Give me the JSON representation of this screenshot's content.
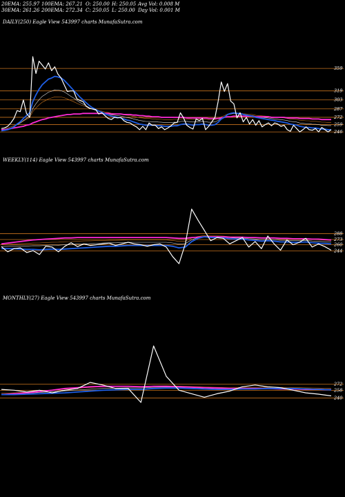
{
  "header": {
    "ema20": "20EMA: 255.97",
    "ema100": "100EMA: 267.21",
    "open": "O: 250.00",
    "high": "H: 250.05",
    "avg_vol": "Avg Vol: 0.008 M",
    "ema30": "30EMA: 261.26",
    "ema200": "200EMA: 272.34",
    "close": "C: 250.05",
    "low": "L: 250.00",
    "day_vol": "Day Vol: 0.001 M"
  },
  "colors": {
    "price": "#ffffff",
    "ema_fast": "#1f5fe6",
    "ema_mid": "#ff2bd6",
    "ema_orange": "#c8731e",
    "ema_white": "#dddddd",
    "level": "#c8731e",
    "background": "#000000"
  },
  "chart_data": [
    {
      "type": "line",
      "title": "DAILY(250) Eagle  View  543997 charts MunafaSutra.com",
      "levels": [
        359,
        319,
        303,
        287,
        272,
        259,
        246
      ],
      "series": [
        {
          "key": "price",
          "values": [
            252,
            253,
            256,
            262,
            270,
            284,
            282,
            303,
            279,
            272,
            380,
            350,
            372,
            365,
            358,
            369,
            355,
            362,
            349,
            342,
            330,
            318,
            319,
            319,
            305,
            302,
            300,
            292,
            288,
            287,
            286,
            278,
            280,
            275,
            270,
            268,
            272,
            271,
            272,
            266,
            263,
            262,
            258,
            255,
            250,
            256,
            250,
            262,
            258,
            258,
            252,
            255,
            250,
            253,
            257,
            262,
            263,
            280,
            271,
            258,
            254,
            251,
            269,
            266,
            270,
            250,
            256,
            264,
            272,
            300,
            335,
            318,
            332,
            301,
            296,
            271,
            280,
            264,
            272,
            260,
            268,
            258,
            266,
            255,
            259,
            262,
            257,
            262,
            260,
            256,
            258,
            250,
            247,
            258,
            252,
            246,
            250,
            255,
            250,
            249,
            252,
            246,
            254,
            250,
            246,
            250
          ]
        },
        {
          "key": "ema_fast",
          "values": [
            248,
            249,
            250,
            252,
            255,
            260,
            264,
            270,
            275,
            280,
            300,
            312,
            322,
            330,
            335,
            340,
            342,
            345,
            344,
            342,
            338,
            332,
            326,
            320,
            314,
            308,
            303,
            298,
            293,
            289,
            286,
            283,
            281,
            278,
            276,
            274,
            273,
            272,
            271,
            269,
            267,
            266,
            264,
            262,
            260,
            259,
            258,
            258,
            258,
            258,
            257,
            257,
            256,
            256,
            256,
            257,
            257,
            259,
            260,
            260,
            259,
            258,
            259,
            259,
            260,
            259,
            258,
            258,
            259,
            263,
            269,
            272,
            277,
            279,
            280,
            279,
            279,
            277,
            276,
            275,
            274,
            272,
            271,
            270,
            269,
            268,
            267,
            266,
            265,
            264,
            263,
            262,
            260,
            259,
            258,
            256,
            255,
            254,
            254,
            253,
            253,
            252,
            251,
            251,
            250,
            250
          ]
        },
        {
          "key": "ema_mid",
          "values": [
            250,
            250,
            251,
            252,
            253,
            254,
            255,
            256,
            258,
            259,
            262,
            264,
            266,
            268,
            269,
            271,
            272,
            273,
            274,
            275,
            276,
            277,
            277,
            278,
            278,
            278,
            279,
            279,
            279,
            279,
            279,
            279,
            279,
            279,
            279,
            278,
            278,
            278,
            278,
            277,
            277,
            277,
            276,
            276,
            275,
            275,
            274,
            274,
            273,
            273,
            273,
            272,
            272,
            272,
            272,
            272,
            272,
            272,
            272,
            271,
            271,
            271,
            271,
            271,
            271,
            271,
            270,
            270,
            270,
            270,
            271,
            272,
            273,
            273,
            274,
            274,
            274,
            274,
            274,
            274,
            274,
            273,
            273,
            273,
            273,
            273,
            272,
            272,
            272,
            272,
            272,
            271,
            271,
            271,
            271,
            270,
            270,
            270,
            270,
            269,
            269,
            269,
            268,
            268,
            268,
            268
          ]
        }
      ]
    },
    {
      "type": "line",
      "title": "WEEKLY(114) Eagle  View  543997 charts MunafaSutra.com",
      "levels": [
        288,
        273,
        260,
        244
      ],
      "series": [
        {
          "key": "price",
          "values": [
            255,
            242,
            250,
            252,
            240,
            245,
            235,
            256,
            254,
            242,
            256,
            265,
            255,
            262,
            258,
            260,
            262,
            264,
            258,
            262,
            266,
            262,
            260,
            256,
            260,
            262,
            254,
            230,
            212,
            262,
            350,
            322,
            296,
            270,
            278,
            276,
            262,
            270,
            278,
            254,
            268,
            250,
            282,
            262,
            246,
            272,
            260,
            266,
            276,
            254,
            262,
            255,
            246
          ]
        },
        {
          "key": "ema_fast",
          "values": [
            250,
            250,
            250,
            249,
            248,
            248,
            247,
            248,
            249,
            248,
            249,
            250,
            251,
            252,
            253,
            254,
            255,
            256,
            256,
            257,
            258,
            258,
            258,
            258,
            258,
            258,
            258,
            256,
            252,
            254,
            268,
            276,
            280,
            278,
            278,
            277,
            275,
            274,
            274,
            272,
            271,
            269,
            270,
            269,
            267,
            267,
            266,
            266,
            267,
            265,
            264,
            263,
            262
          ]
        },
        {
          "key": "ema_mid",
          "values": [
            262,
            264,
            266,
            268,
            270,
            272,
            273,
            274,
            275,
            276,
            277,
            277,
            278,
            278,
            278,
            278,
            278,
            278,
            278,
            278,
            278,
            278,
            278,
            278,
            278,
            278,
            278,
            277,
            276,
            276,
            278,
            279,
            280,
            280,
            280,
            280,
            279,
            279,
            279,
            278,
            278,
            277,
            277,
            277,
            276,
            276,
            275,
            275,
            275,
            274,
            274,
            273,
            272
          ]
        }
      ]
    },
    {
      "type": "line",
      "title": "MONTHLY(27) Eagle  View  543997 charts MunafaSutra.com",
      "levels": [
        272,
        258,
        240
      ],
      "series": [
        {
          "key": "price",
          "values": [
            260,
            258,
            254,
            258,
            252,
            258,
            262,
            276,
            270,
            262,
            262,
            230,
            360,
            290,
            258,
            250,
            242,
            250,
            256,
            266,
            270,
            266,
            264,
            258,
            252,
            249,
            245
          ]
        },
        {
          "key": "ema_fast",
          "values": [
            248,
            248,
            249,
            250,
            251,
            252,
            254,
            256,
            258,
            259,
            260,
            260,
            262,
            263,
            263,
            262,
            261,
            260,
            260,
            261,
            261,
            262,
            262,
            262,
            261,
            260,
            259
          ]
        },
        {
          "key": "ema_mid",
          "values": [
            248,
            250,
            252,
            255,
            258,
            262,
            264,
            266,
            267,
            267,
            267,
            266,
            267,
            267,
            266,
            265,
            264,
            263,
            262,
            262,
            262,
            262,
            261,
            261,
            260,
            260,
            259
          ]
        }
      ]
    }
  ]
}
